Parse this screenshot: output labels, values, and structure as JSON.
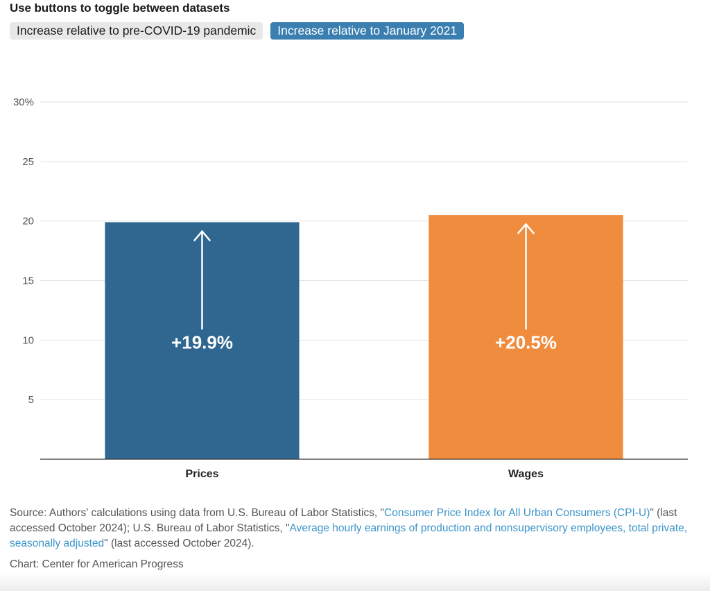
{
  "prompt": "Use buttons to toggle between datasets",
  "toggles": [
    {
      "label": "Increase relative to pre-COVID-19 pandemic",
      "active": false
    },
    {
      "label": "Increase relative to January 2021",
      "active": true
    }
  ],
  "chart_data": {
    "type": "bar",
    "categories": [
      "Prices",
      "Wages"
    ],
    "values": [
      19.9,
      20.5
    ],
    "data_labels": [
      "+19.9%",
      "+20.5%"
    ],
    "colors": [
      "#2f6791",
      "#f08c3e"
    ],
    "ylim": [
      0,
      30
    ],
    "y_ticks": [
      5,
      10,
      15,
      20,
      25,
      30
    ],
    "y_tick_labels": [
      "5",
      "10",
      "15",
      "20",
      "25",
      "30%"
    ],
    "grid": true,
    "title": "",
    "xlabel": "",
    "ylabel": ""
  },
  "source": {
    "prefix": "Source: Authors' calculations using data from U.S. Bureau of Labor Statistics, \"",
    "link1": "Consumer Price Index for All Urban Consumers (CPI-U)",
    "middle": "\" (last accessed October 2024); U.S. Bureau of Labor Statistics, \"",
    "link2": "Average hourly earnings of production and nonsupervisory employees, total private, seasonally adjusted",
    "suffix": "\" (last accessed October 2024)."
  },
  "credit": "Chart: Center for American Progress",
  "colors": {
    "accent": "#3a7fb0",
    "link": "#3b94c9"
  }
}
